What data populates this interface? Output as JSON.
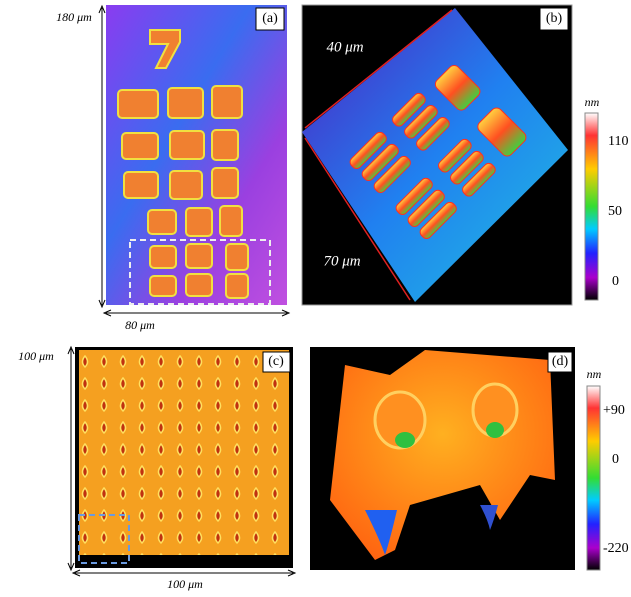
{
  "panels": [
    {
      "label": "(a)",
      "height_label": "180 μm",
      "width_label": "80 μm"
    },
    {
      "label": "(b)",
      "diag_label_top": "40 μm",
      "diag_label_bottom": "70 μm",
      "colorbar": {
        "unit": "nm",
        "ticks": [
          "110",
          "50",
          "0"
        ]
      }
    },
    {
      "label": "(c)",
      "height_label": "100 μm",
      "width_label": "100 μm"
    },
    {
      "label": "(d)",
      "colorbar": {
        "unit": "nm",
        "ticks": [
          "+90",
          "0",
          "-220"
        ]
      }
    }
  ]
}
